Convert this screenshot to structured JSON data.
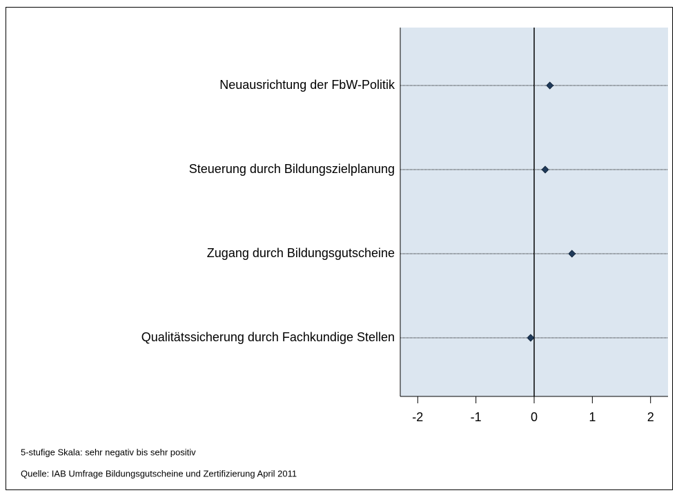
{
  "chart_data": {
    "type": "dot",
    "categories": [
      "Neuausrichtung der FbW-Politik",
      "Steuerung durch Bildungszielplanung",
      "Zugang durch Bildungsgutscheine",
      "Qualitätssicherung durch Fachkundige Stellen"
    ],
    "values": [
      0.27,
      0.19,
      0.65,
      -0.06
    ],
    "color": "#1f3a5a",
    "xlim": [
      -2.3,
      2.3
    ],
    "xticks": [
      -2,
      -1,
      0,
      1,
      2
    ],
    "notes": [
      "5-stufige Skala: sehr negativ bis sehr positiv",
      "Quelle: IAB Umfrage Bildungsgutscheine und Zertifizierung April 2011"
    ]
  }
}
